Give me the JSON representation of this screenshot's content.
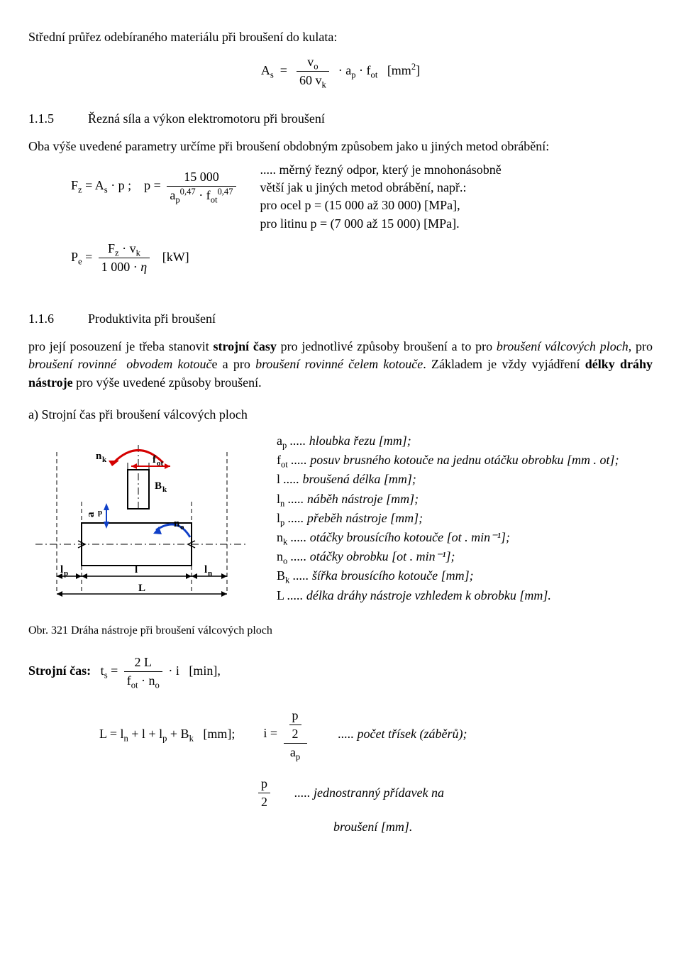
{
  "heading1": "Střední průřez odebíraného materiálu při broušení do kulata:",
  "formula_As": "A_s = (v_o / 60 v_k) · a_p · f_ot  [mm²]",
  "sec115_num": "1.1.5",
  "sec115_title": "Řezná síla a výkon elektromotoru při broušení",
  "sec115_intro": "Oba výše uvedené parametry určíme při broušení obdobným způsobem jako u jiných metod obrábění:",
  "formula_Fz": "F_z = A_s · p ;   p = 15 000 / (a_p^0,47 · f_ot^0,47)",
  "odpor_note": "..... měrný řezný odpor, který je mnohonásobně",
  "odpor_cont": "větší jak u jiných metod obrábění, např.:",
  "ocel_line": "pro ocel      p = (15 000 až 30 000)  [MPa],",
  "litina_line": "pro litinu     p = (7 000 až 15 000)  [MPa].",
  "formula_Pe": "P_e = (F_z · v_k) / (1 000 · η)   [kW]",
  "sec116_num": "1.1.6",
  "sec116_title": "Produktivita při broušení",
  "sec116_para": "pro její posouzení je třeba stanovit strojní časy pro jednotlivé způsoby broušení a to pro broušení válcových ploch, pro broušení rovinné  obvodem kotouče a pro broušení rovinné čelem kotouče. Základem je vždy vyjádření délky dráhy nástroje pro výše uvedené způsoby broušení.",
  "sec_a_title": "a)  Strojní čas při broušení válcových ploch",
  "diagram": {
    "labels": {
      "nk": "n_k",
      "fot": "f_ot",
      "Bk": "B_k",
      "ap": "a_p",
      "no": "n_o",
      "lp": "l_p",
      "ln": "l_n",
      "l": "l",
      "L": "L"
    },
    "colors": {
      "red": "#d40000",
      "blue": "#1040c8",
      "black": "#000000",
      "dash": "#000000"
    }
  },
  "vars": [
    {
      "sym": "a_p",
      "desc": "..... hloubka řezu [mm];"
    },
    {
      "sym": "f_ot",
      "desc": "..... posuv brusného kotouče na jednu otáčku obrobku [mm . ot];"
    },
    {
      "sym": "l",
      "desc": "..... broušená délka [mm];"
    },
    {
      "sym": "l_n",
      "desc": "..... náběh nástroje [mm];"
    },
    {
      "sym": "l_p",
      "desc": "..... přeběh nástroje [mm];"
    },
    {
      "sym": "n_k",
      "desc": "..... otáčky brousícího kotouče [ot . min⁻¹];"
    },
    {
      "sym": "n_o",
      "desc": "..... otáčky obrobku [ot . min⁻¹];"
    },
    {
      "sym": "B_k",
      "desc": "..... šířka brousícího kotouče [mm];"
    },
    {
      "sym": "L",
      "desc": "..... délka dráhy nástroje vzhledem k obrobku [mm]."
    }
  ],
  "figcaption": "Obr. 321 Dráha nástroje při broušení válcových ploch",
  "strojni_cas_label": "Strojní čas:",
  "formula_ts": "t_s = (2 L) / (f_ot · n_o) · i   [min],",
  "formula_L": "L = l_n + l + l_p + B_k   [mm];",
  "formula_i": "i = (p/2) / a_p",
  "i_desc": "..... počet třísek (záběrů);",
  "p2_label": "p / 2",
  "p2_desc": "..... jednostranný přídavek na",
  "p2_desc2": "broušení [mm]."
}
